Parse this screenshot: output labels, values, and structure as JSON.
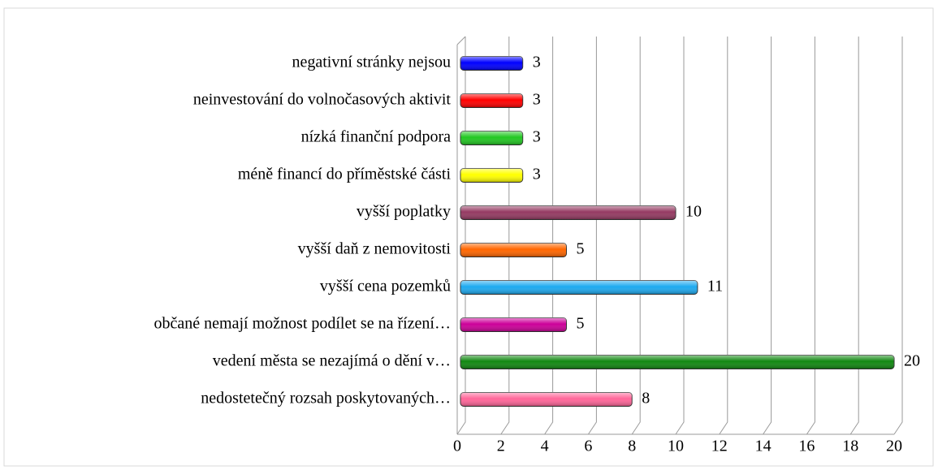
{
  "chart_data": {
    "type": "bar",
    "orientation": "horizontal",
    "categories": [
      "negativní stránky nejsou",
      "neinvestování do volnočasových aktivit",
      "nízká finanční podpora",
      "méně financí do příměstské části",
      "vyšší poplatky",
      "vyšší daň z nemovitosti",
      "vyšší cena pozemků",
      "občané nemají možnost podílet se na řízení…",
      "vedení města se nezajímá o dění v…",
      "nedostetečný rozsah poskytovaných…"
    ],
    "values": [
      3,
      3,
      3,
      3,
      10,
      5,
      11,
      5,
      20,
      8
    ],
    "colors": [
      "#0000ff",
      "#ff0000",
      "#22c722",
      "#ffff00",
      "#953a62",
      "#ff6600",
      "#1eaaf0",
      "#cc0099",
      "#118811",
      "#ff6699"
    ],
    "xlim": [
      0,
      20
    ],
    "xticks": [
      0,
      2,
      4,
      6,
      8,
      10,
      12,
      14,
      16,
      18,
      20
    ],
    "grid": true
  }
}
